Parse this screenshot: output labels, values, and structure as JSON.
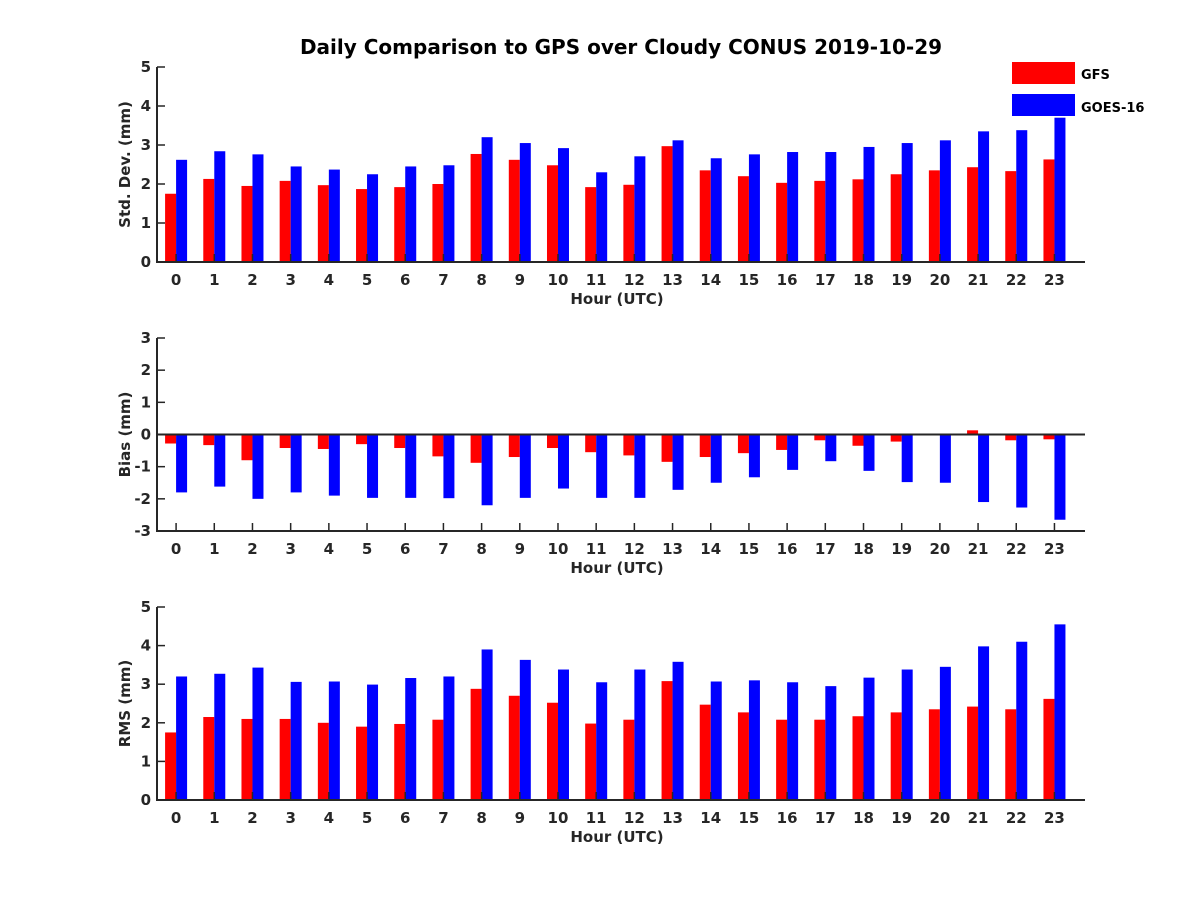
{
  "title": "Daily Comparison to GPS over Cloudy CONUS 2019-10-29",
  "legend": {
    "placement": "top-right",
    "items": [
      {
        "label": "GFS",
        "color": "#ff0000"
      },
      {
        "label": "GOES-16",
        "color": "#0000ff"
      }
    ]
  },
  "chart_data": [
    {
      "type": "bar",
      "xlabel": "Hour (UTC)",
      "ylabel": "Std. Dev. (mm)",
      "ylim": [
        0,
        5
      ],
      "yticks": [
        0,
        1,
        2,
        3,
        4,
        5
      ],
      "categories": [
        "0",
        "1",
        "2",
        "3",
        "4",
        "5",
        "6",
        "7",
        "8",
        "9",
        "10",
        "11",
        "12",
        "13",
        "14",
        "15",
        "16",
        "17",
        "18",
        "19",
        "20",
        "21",
        "22",
        "23"
      ],
      "series": [
        {
          "name": "GFS",
          "color": "#ff0000",
          "values": [
            1.75,
            2.13,
            1.95,
            2.08,
            1.97,
            1.87,
            1.92,
            2.0,
            2.77,
            2.62,
            2.48,
            1.92,
            1.98,
            2.97,
            2.35,
            2.2,
            2.03,
            2.08,
            2.12,
            2.25,
            2.35,
            2.43,
            2.33,
            2.63
          ]
        },
        {
          "name": "GOES-16",
          "color": "#0000ff",
          "values": [
            2.62,
            2.84,
            2.76,
            2.45,
            2.37,
            2.25,
            2.45,
            2.48,
            3.2,
            3.05,
            2.92,
            2.3,
            2.71,
            3.12,
            2.66,
            2.76,
            2.82,
            2.82,
            2.95,
            3.05,
            3.12,
            3.35,
            3.38,
            3.7
          ]
        }
      ]
    },
    {
      "type": "bar",
      "xlabel": "Hour (UTC)",
      "ylabel": "Bias (mm)",
      "ylim": [
        -3,
        3
      ],
      "yticks": [
        -3,
        -2,
        -1,
        0,
        1,
        2,
        3
      ],
      "zero_line": true,
      "categories": [
        "0",
        "1",
        "2",
        "3",
        "4",
        "5",
        "6",
        "7",
        "8",
        "9",
        "10",
        "11",
        "12",
        "13",
        "14",
        "15",
        "16",
        "17",
        "18",
        "19",
        "20",
        "21",
        "22",
        "23"
      ],
      "series": [
        {
          "name": "GFS",
          "color": "#ff0000",
          "values": [
            -0.28,
            -0.33,
            -0.8,
            -0.42,
            -0.45,
            -0.3,
            -0.42,
            -0.68,
            -0.88,
            -0.7,
            -0.42,
            -0.55,
            -0.65,
            -0.85,
            -0.7,
            -0.58,
            -0.48,
            -0.18,
            -0.35,
            -0.22,
            -0.02,
            0.13,
            -0.18,
            -0.15
          ]
        },
        {
          "name": "GOES-16",
          "color": "#0000ff",
          "values": [
            -1.8,
            -1.62,
            -2.0,
            -1.8,
            -1.9,
            -1.97,
            -1.97,
            -1.98,
            -2.2,
            -1.97,
            -1.68,
            -1.97,
            -1.97,
            -1.72,
            -1.5,
            -1.33,
            -1.1,
            -0.83,
            -1.13,
            -1.48,
            -1.5,
            -2.1,
            -2.27,
            -2.65
          ]
        }
      ]
    },
    {
      "type": "bar",
      "xlabel": "Hour (UTC)",
      "ylabel": "RMS (mm)",
      "ylim": [
        0,
        5
      ],
      "yticks": [
        0,
        1,
        2,
        3,
        4,
        5
      ],
      "categories": [
        "0",
        "1",
        "2",
        "3",
        "4",
        "5",
        "6",
        "7",
        "8",
        "9",
        "10",
        "11",
        "12",
        "13",
        "14",
        "15",
        "16",
        "17",
        "18",
        "19",
        "20",
        "21",
        "22",
        "23"
      ],
      "series": [
        {
          "name": "GFS",
          "color": "#ff0000",
          "values": [
            1.75,
            2.15,
            2.1,
            2.1,
            2.0,
            1.9,
            1.97,
            2.08,
            2.88,
            2.7,
            2.52,
            1.98,
            2.08,
            3.08,
            2.47,
            2.27,
            2.08,
            2.08,
            2.17,
            2.27,
            2.35,
            2.42,
            2.35,
            2.62
          ]
        },
        {
          "name": "GOES-16",
          "color": "#0000ff",
          "values": [
            3.2,
            3.27,
            3.43,
            3.06,
            3.07,
            2.99,
            3.16,
            3.2,
            3.9,
            3.63,
            3.38,
            3.05,
            3.38,
            3.58,
            3.07,
            3.1,
            3.05,
            2.95,
            3.17,
            3.38,
            3.45,
            3.98,
            4.1,
            4.55
          ]
        }
      ]
    }
  ]
}
